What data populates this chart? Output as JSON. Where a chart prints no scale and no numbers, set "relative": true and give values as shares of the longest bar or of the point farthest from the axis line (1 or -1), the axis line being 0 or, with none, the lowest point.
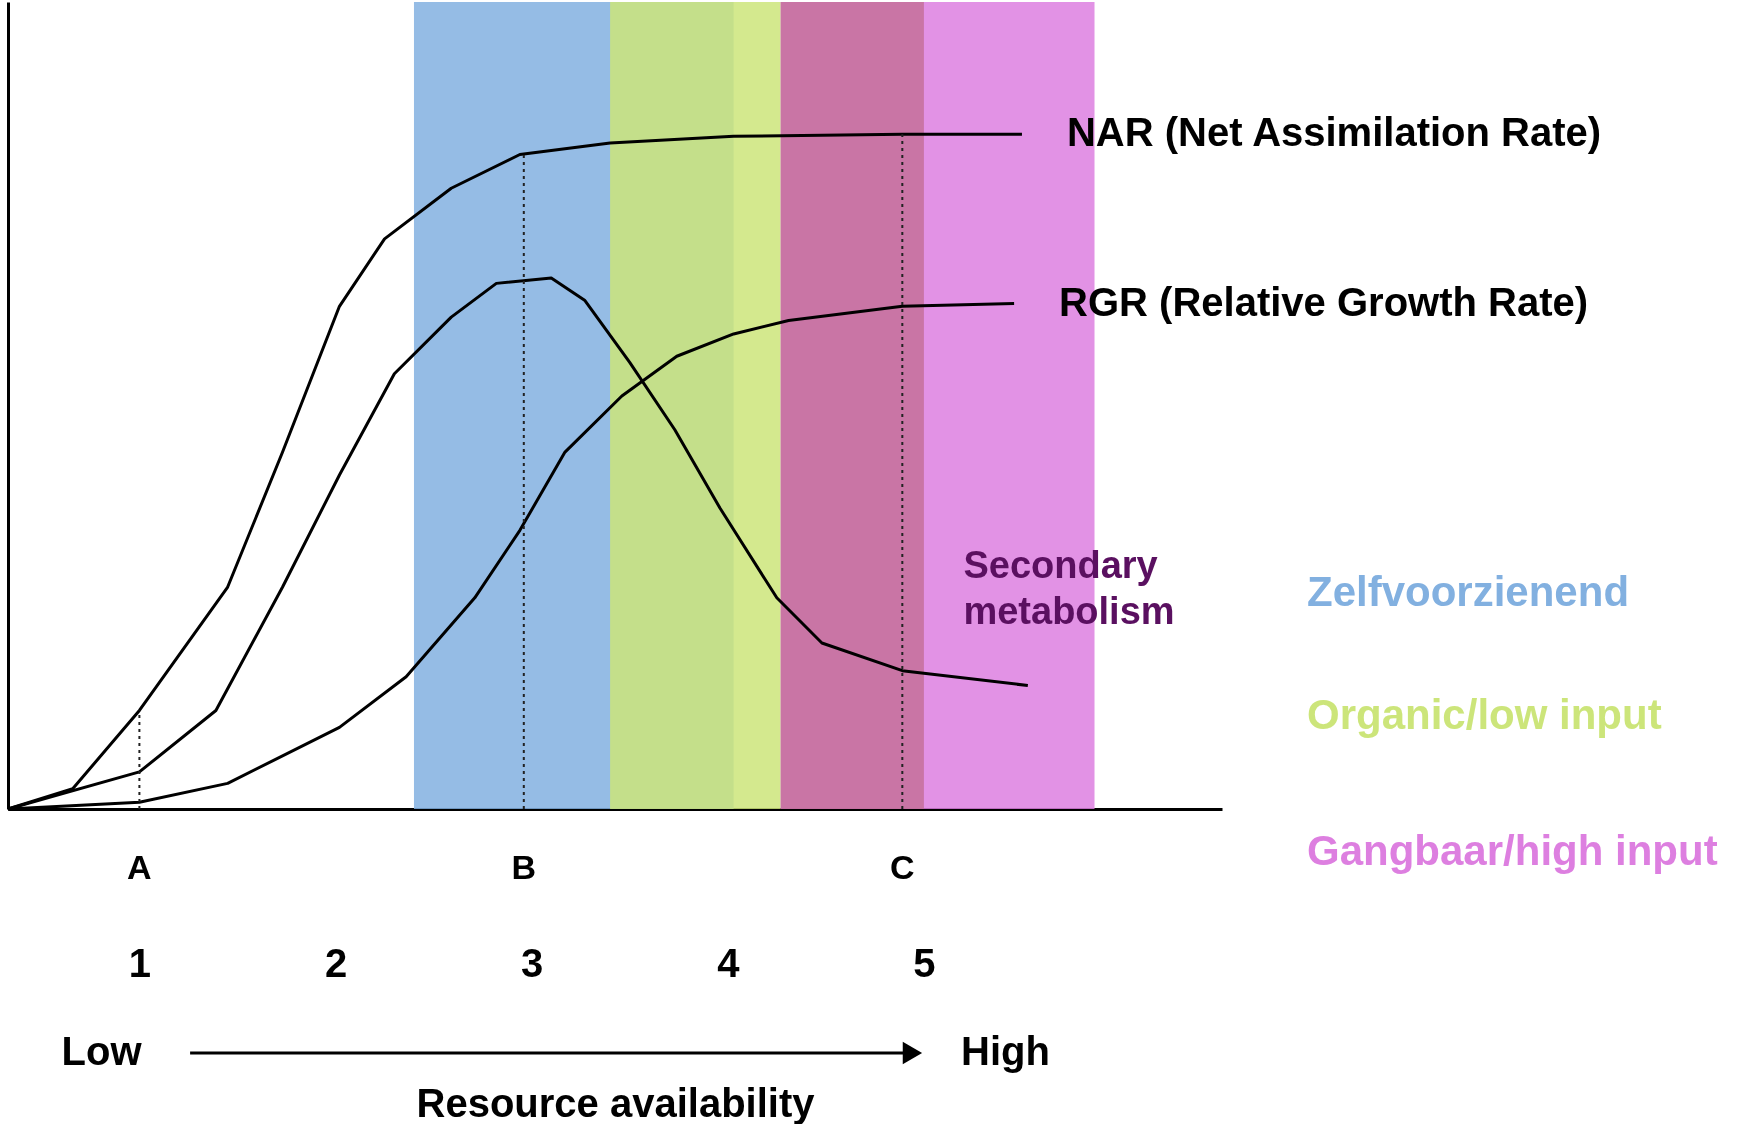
{
  "chart_data": {
    "type": "line",
    "relative": true,
    "xlabel": "Resource availability",
    "xlim": [
      0.33,
      6.52
    ],
    "xticks": [
      1,
      2,
      3,
      4,
      5
    ],
    "grid": false,
    "marker": "none",
    "line_style": "solid",
    "series": [
      {
        "name": "NAR  (Net Assimilation Rate)",
        "color": "#000000",
        "x": [
          0.33,
          0.66,
          1.0,
          1.45,
          1.73,
          2.02,
          2.25,
          2.59,
          2.94,
          3.4,
          4.03,
          4.89,
          5.5
        ],
        "values": [
          0,
          0.03,
          0.146,
          0.329,
          0.529,
          0.745,
          0.845,
          0.92,
          0.97,
          0.987,
          0.997,
          1.0,
          1.0
        ]
      },
      {
        "name": "RGR  (Relative Growth Rate)",
        "color": "#000000",
        "x": [
          0.33,
          1.0,
          1.45,
          2.02,
          2.36,
          2.71,
          2.94,
          3.17,
          3.46,
          3.74,
          4.03,
          4.31,
          4.89,
          5.46
        ],
        "values": [
          0,
          0.01,
          0.038,
          0.121,
          0.196,
          0.313,
          0.413,
          0.529,
          0.612,
          0.671,
          0.704,
          0.724,
          0.745,
          0.749
        ]
      },
      {
        "color": "#000000",
        "x": [
          0.33,
          1.0,
          1.39,
          1.73,
          2.02,
          2.3,
          2.59,
          2.82,
          3.1,
          3.27,
          3.5,
          3.73,
          3.96,
          4.25,
          4.48,
          4.89,
          5.53
        ],
        "values": [
          0,
          0.055,
          0.146,
          0.329,
          0.495,
          0.645,
          0.729,
          0.779,
          0.787,
          0.754,
          0.662,
          0.562,
          0.446,
          0.313,
          0.246,
          0.205,
          0.183
        ]
      }
    ],
    "annotations": [
      "Low",
      "High",
      "Secondary metabolism"
    ],
    "ref_lines": [
      {
        "axis": "x",
        "value": 1.0,
        "label": "A",
        "line_style": "dotted"
      },
      {
        "axis": "x",
        "value": 2.96,
        "label": "B",
        "line_style": "dotted"
      },
      {
        "axis": "x",
        "value": 4.89,
        "label": "C",
        "line_style": "dotted"
      }
    ],
    "bands": [
      {
        "axis": "x",
        "from": 2.4,
        "to": 4.03,
        "label": "Zelfvoorzienend",
        "color": "#82b0e0"
      },
      {
        "axis": "x",
        "from": 3.4,
        "to": 4.27,
        "label": "Organic/low input",
        "color": "#cce57a"
      },
      {
        "axis": "x",
        "from": 4.27,
        "to": 5.87,
        "label": "Gangbaar/high input",
        "color": "#dd7fe0"
      },
      {
        "axis": "x",
        "from": 4.27,
        "to": 5.0,
        "color": "#c4709a"
      }
    ]
  }
}
